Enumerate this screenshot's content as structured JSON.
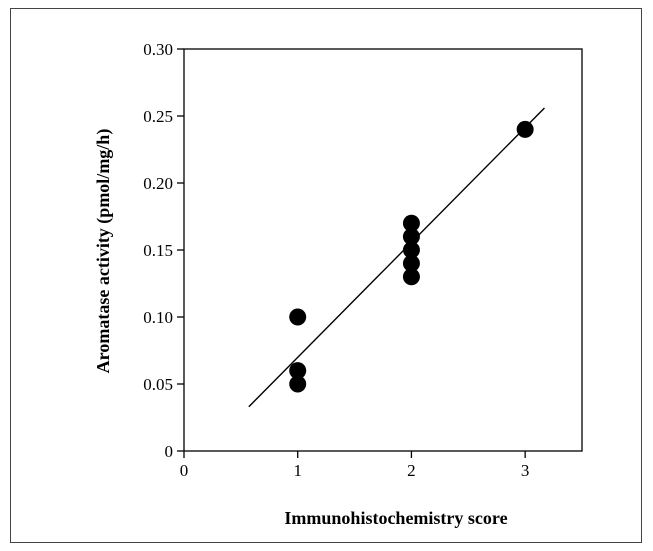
{
  "chart_data": {
    "type": "scatter",
    "title": "",
    "xlabel": "Immunohistochemistry score",
    "ylabel": "Aromatase activity (pmol/mg/h)",
    "xlim": [
      0,
      3.5
    ],
    "ylim": [
      0,
      0.3
    ],
    "x_ticks": [
      "0",
      "1",
      "2",
      "3"
    ],
    "y_ticks": [
      "0",
      "0.05",
      "0.10",
      "0.15",
      "0.20",
      "0.25",
      "0.30"
    ],
    "points": [
      {
        "x": 1,
        "y": 0.1
      },
      {
        "x": 1,
        "y": 0.06
      },
      {
        "x": 1,
        "y": 0.05
      },
      {
        "x": 2,
        "y": 0.17
      },
      {
        "x": 2,
        "y": 0.16
      },
      {
        "x": 2,
        "y": 0.15
      },
      {
        "x": 2,
        "y": 0.14
      },
      {
        "x": 2,
        "y": 0.13
      },
      {
        "x": 3,
        "y": 0.24
      }
    ],
    "regression_line": {
      "x": [
        0.57,
        3.17
      ],
      "y": [
        0.033,
        0.256
      ]
    },
    "grid": false,
    "legend": "none",
    "colors": {
      "marker": "#000000",
      "line": "#000000",
      "axis": "#000000"
    }
  }
}
